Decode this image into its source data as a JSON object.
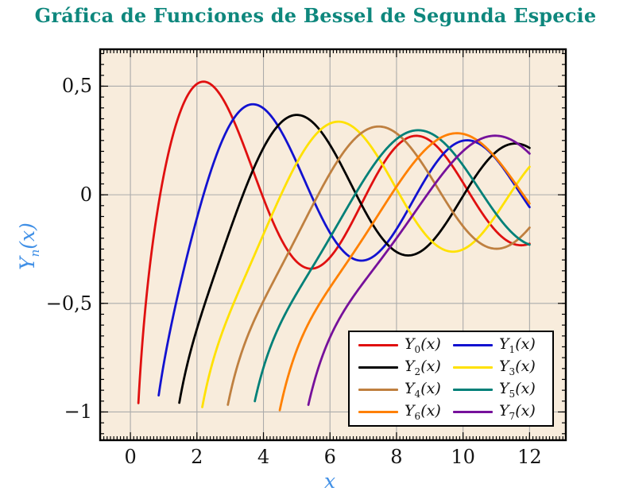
{
  "page": {
    "background": "#FFFFFF"
  },
  "title": {
    "text": "Gráfica de Funciones de Bessel de Segunda Especie",
    "color": "#0E877D"
  },
  "chart_data": {
    "type": "line",
    "title": "Gráfica de Funciones de Bessel de Segunda Especie",
    "xlabel": "x",
    "ylabel": "Y_n(x)",
    "ylabel_parts": {
      "base": "Y",
      "sub": "n",
      "arg": "(x)"
    },
    "xlim": [
      -0.91,
      13.09
    ],
    "ylim": [
      -1.13,
      0.67
    ],
    "grid": true,
    "grid_color": "#ABABAB",
    "plot_background": "#F8ECDC",
    "frame_color": "#000000",
    "axis_label_color": "#4190E6",
    "tick_label_color": "#141414",
    "legend_position": "lower right",
    "x_ticks": {
      "values": [
        0,
        2,
        4,
        6,
        8,
        10,
        12
      ],
      "labels": [
        "0",
        "2",
        "4",
        "6",
        "8",
        "10",
        "12"
      ],
      "minor_step": 0.1
    },
    "y_ticks": {
      "values": [
        0.5,
        0,
        -0.5,
        -1
      ],
      "labels": [
        "0,5",
        "0",
        "−0,5",
        "−1"
      ],
      "minor_step": 0.05
    },
    "series": [
      {
        "label": "Y0(x)",
        "label_base": "Y",
        "label_sub": "0",
        "label_arg": "(x)",
        "order": 0,
        "color": "#E01010",
        "x_start": 0.24,
        "x_end": 12,
        "keypoints": [
          [
            0.24,
            -0.95
          ],
          [
            0.89,
            0
          ],
          [
            2.2,
            0.52
          ],
          [
            3.96,
            0
          ],
          [
            5.43,
            -0.34
          ],
          [
            7.09,
            0
          ],
          [
            8.6,
            0.27
          ],
          [
            10.22,
            0
          ],
          [
            11.75,
            -0.23
          ],
          [
            12,
            -0.22
          ]
        ]
      },
      {
        "label": "Y1(x)",
        "label_base": "Y",
        "label_sub": "1",
        "label_arg": "(x)",
        "order": 1,
        "color": "#1212D0",
        "x_start": 0.85,
        "x_end": 12,
        "keypoints": [
          [
            0.85,
            -0.92
          ],
          [
            2.2,
            0
          ],
          [
            3.68,
            0.42
          ],
          [
            5.43,
            0
          ],
          [
            7.02,
            -0.3
          ],
          [
            8.6,
            0
          ],
          [
            10.13,
            0.25
          ],
          [
            11.75,
            0
          ],
          [
            12,
            0.06
          ]
        ]
      },
      {
        "label": "Y2(x)",
        "label_base": "Y",
        "label_sub": "2",
        "label_arg": "(x)",
        "order": 2,
        "color": "#000000",
        "x_start": 1.47,
        "x_end": 12,
        "keypoints": [
          [
            1.47,
            -0.96
          ],
          [
            3.38,
            0
          ],
          [
            5.03,
            0.37
          ],
          [
            6.79,
            0
          ],
          [
            8.35,
            -0.28
          ],
          [
            10.02,
            0
          ],
          [
            11.52,
            0.25
          ],
          [
            12,
            0.22
          ]
        ]
      },
      {
        "label": "Y3(x)",
        "label_base": "Y",
        "label_sub": "3",
        "label_arg": "(x)",
        "order": 3,
        "color": "#FFE100",
        "x_start": 2.16,
        "x_end": 12,
        "keypoints": [
          [
            2.16,
            -0.94
          ],
          [
            4.53,
            0
          ],
          [
            6.37,
            0.33
          ],
          [
            8.1,
            0
          ],
          [
            9.72,
            -0.27
          ],
          [
            11.4,
            0
          ],
          [
            12,
            0.14
          ]
        ]
      },
      {
        "label": "Y4(x)",
        "label_base": "Y",
        "label_sub": "4",
        "label_arg": "(x)",
        "order": 4,
        "color": "#BF8040",
        "x_start": 2.93,
        "x_end": 12,
        "keypoints": [
          [
            2.93,
            -0.97
          ],
          [
            5.65,
            0
          ],
          [
            7.5,
            0.31
          ],
          [
            9.36,
            0
          ],
          [
            10.99,
            -0.26
          ],
          [
            12,
            -0.18
          ]
        ]
      },
      {
        "label": "Y5(x)",
        "label_base": "Y",
        "label_sub": "5",
        "label_arg": "(x)",
        "order": 5,
        "color": "#008078",
        "x_start": 3.74,
        "x_end": 12,
        "keypoints": [
          [
            3.74,
            -0.93
          ],
          [
            6.75,
            0
          ],
          [
            8.6,
            0.3
          ],
          [
            10.6,
            0
          ],
          [
            12,
            -0.24
          ]
        ]
      },
      {
        "label": "Y6(x)",
        "label_base": "Y",
        "label_sub": "6",
        "label_arg": "(x)",
        "order": 6,
        "color": "#FF8000",
        "x_start": 4.49,
        "x_end": 12,
        "keypoints": [
          [
            4.49,
            -0.99
          ],
          [
            7.84,
            0
          ],
          [
            9.9,
            0.3
          ],
          [
            11.81,
            0
          ],
          [
            12,
            -0.06
          ]
        ]
      },
      {
        "label": "Y7(x)",
        "label_base": "Y",
        "label_sub": "7",
        "label_arg": "(x)",
        "order": 7,
        "color": "#76119B",
        "x_start": 5.35,
        "x_end": 12,
        "keypoints": [
          [
            5.35,
            -0.95
          ],
          [
            8.9,
            0
          ],
          [
            11.5,
            0.29
          ],
          [
            12,
            0.26
          ]
        ]
      }
    ]
  }
}
